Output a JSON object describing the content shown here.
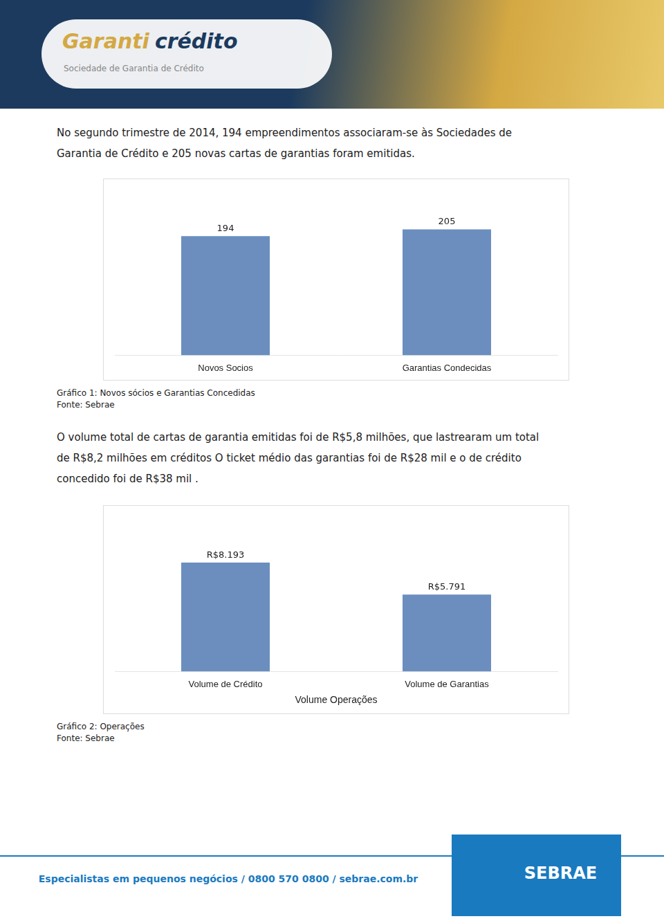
{
  "header": [
    "Garanti",
    "crédito",
    "Sociedade de Garantia de Crédito"
  ],
  "paragraphs": [
    [
      "No segundo trimestre de 2014, 194 empreendimentos associaram-se às Sociedades de",
      "Garantia de Crédito e 205 novas cartas de garantias foram emitidas."
    ],
    [
      "O volume total de cartas de garantia emitidas foi de R$5,8 milhões, que lastrearam um total",
      "de R$8,2 milhões em créditos O ticket médio das garantias foi de R$28 mil e o de crédito",
      "concedido foi de R$38 mil ."
    ]
  ],
  "chart_data": [
    {
      "type": "bar",
      "title": "Gráfico 1: Novos sócios e Garantias Concedidas",
      "annotations": [
        "Fonte: Sebrae"
      ],
      "categories": [
        "Novos Socios",
        "Garantias Condecidas"
      ],
      "values": [
        194,
        205
      ],
      "color": "#6b8ebf",
      "ylim": [
        0,
        255
      ],
      "grid": false,
      "data_labels": true,
      "tick_labels": "x"
    },
    {
      "type": "bar",
      "title": "Gráfico 2: Operações",
      "annotations": [
        "Fonte: Sebrae"
      ],
      "xlabel": "Volume Operações",
      "categories": [
        "Volume de Crédito",
        "Volume de Garantias"
      ],
      "values": [
        8193,
        5791
      ],
      "value_labels": [
        "R$8.193",
        "R$5.791"
      ],
      "color": "#6b8ebf",
      "ylim": [
        0,
        11000
      ],
      "grid": false,
      "data_labels": true,
      "tick_labels": "x"
    }
  ],
  "footer": [
    "Especialistas em pequenos negócios / 0800 570 0800 / sebrae.com.br",
    "SEBRAE"
  ]
}
